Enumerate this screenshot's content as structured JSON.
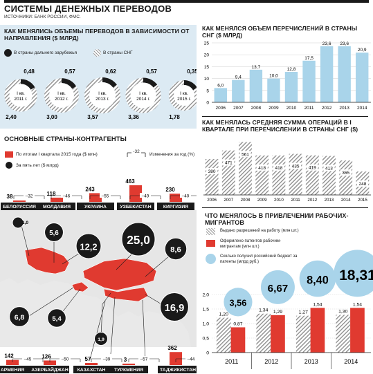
{
  "header": {
    "title": "СИСТЕМЫ ДЕНЕЖНЫХ ПЕРЕВОДОВ",
    "source": "ИСТОЧНИКИ: БАНК РОССИИ, ФМС."
  },
  "colors": {
    "red": "#e03a30",
    "blue": "#a9d4ea",
    "hatch": "#bdbdbd",
    "dark": "#1a1a1a",
    "panel": "#dceaf3"
  },
  "chart_data": [
    {
      "type": "pie",
      "title": "КАК МЕНЯЛИСЬ ОБЪЕМЫ ПЕРЕВОДОВ В ЗАВИСИМОСТИ ОТ НАПРАВЛЕНИЯ ($ МЛРД)",
      "legend": [
        "В страны дальнего зарубежья",
        "В страны СНГ"
      ],
      "series": [
        {
          "label": "I кв. 2011 г.",
          "far": 0.48,
          "cis": 2.4
        },
        {
          "label": "I кв. 2012 г.",
          "far": 0.57,
          "cis": 3.0
        },
        {
          "label": "I кв. 2013 г.",
          "far": 0.62,
          "cis": 3.57
        },
        {
          "label": "I кв. 2014 г.",
          "far": 0.57,
          "cis": 3.36
        },
        {
          "label": "I кв. 2015 г.",
          "far": 0.35,
          "cis": 1.78
        }
      ]
    },
    {
      "type": "bar",
      "title": "КАК МЕНЯЛСЯ ОБЪЕМ ПЕРЕЧИСЛЕНИЙ В СТРАНЫ СНГ ($ МЛРД)",
      "categories": [
        "2006",
        "2007",
        "2008",
        "2009",
        "2010",
        "2011",
        "2012",
        "2013",
        "2014"
      ],
      "values": [
        6.0,
        9.4,
        13.7,
        10.0,
        12.8,
        17.5,
        23.6,
        23.6,
        20.9
      ],
      "value_labels": [
        "6,0",
        "9,4",
        "13,7",
        "10,0",
        "12,8",
        "17,5",
        "23,6",
        "23,6",
        "20,9"
      ],
      "yticks": [
        "0",
        "5",
        "10",
        "15",
        "20",
        "25"
      ],
      "ylim": [
        0,
        25
      ]
    },
    {
      "type": "bar",
      "title": "КАК МЕНЯЛАСЬ СРЕДНЯЯ СУММА ОПЕРАЦИЙ В I КВАРТАЛЕ ПРИ ПЕРЕЧИСЛЕНИИ В СТРАНЫ СНГ ($)",
      "categories": [
        "2006",
        "2007",
        "2008",
        "2009",
        "2010",
        "2011",
        "2012",
        "2013",
        "2014",
        "2015"
      ],
      "values": [
        380,
        471,
        561,
        418,
        418,
        435,
        419,
        413,
        365,
        248
      ],
      "ylim": [
        0,
        600
      ]
    },
    {
      "type": "bar",
      "title": "ЧТО МЕНЯЛОСЬ В ПРИВЛЕЧЕНИИ РАБОЧИХ-МИГРАНТОВ",
      "legend": [
        "Выдано разрешений на работу (млн шт.)",
        "Оформлено патентов рабочим-мигрантам (млн шт.)",
        "Сколько получил российский бюджет за патенты (млрд руб.)"
      ],
      "categories": [
        "2011",
        "2012",
        "2013",
        "2014"
      ],
      "series": [
        {
          "name": "Выдано разрешений на работу (млн шт.)",
          "values": [
            1.2,
            1.34,
            1.27,
            1.3
          ]
        },
        {
          "name": "Оформлено патентов рабочим-мигрантам (млн шт.)",
          "values": [
            0.87,
            1.29,
            1.54,
            1.54
          ]
        },
        {
          "name": "Сколько получил российский бюджет за патенты (млрд руб.)",
          "values": [
            3.56,
            6.67,
            8.4,
            18.31
          ]
        }
      ],
      "value_labels": {
        "permits": [
          "1,20",
          "1,34",
          "1,27",
          "1,30"
        ],
        "patents": [
          "0,87",
          "1,29",
          "1,54",
          "1,54"
        ],
        "budget": [
          "3,56",
          "6,67",
          "8,40",
          "18,31"
        ]
      },
      "yticks": [
        "0",
        "0,5",
        "1,0",
        "1,5",
        "2,0"
      ],
      "ylim": [
        0,
        2
      ]
    },
    {
      "type": "bar",
      "title": "ОСНОВНЫЕ СТРАНЫ-КОНТРАГЕНТЫ",
      "legend": [
        "По итогам I квартала 2015 года ($ млн)",
        "Изменения за год (%)",
        "За пять лет ($ млрд)"
      ],
      "legend_change_sample": "-32",
      "top_countries": [
        {
          "name": "БЕЛОРУССИЯ",
          "value": 38,
          "change": "–32"
        },
        {
          "name": "МОЛДАВИЯ",
          "value": 118,
          "change": "–46"
        },
        {
          "name": "УКРАИНА",
          "value": 243,
          "change": "–55"
        },
        {
          "name": "УЗБЕКИСТАН",
          "value": 463,
          "change": "–49"
        },
        {
          "name": "КИРГИЗИЯ",
          "value": 230,
          "change": "–40"
        }
      ],
      "bottom_countries": [
        {
          "name": "АРМЕНИЯ",
          "value": 142,
          "change": "–45"
        },
        {
          "name": "АЗЕРБАЙДЖАН",
          "value": 126,
          "change": "–50"
        },
        {
          "name": "КАЗАХСТАН",
          "value": 57,
          "change": "–39"
        },
        {
          "name": "ТУРКМЕНИЯ",
          "value": 3,
          "change": "–57"
        },
        {
          "name": "ТАДЖИКИСТАН",
          "value": 362,
          "change": "–44"
        }
      ],
      "five_year": [
        {
          "label": "1,0",
          "value": 1.0
        },
        {
          "label": "5,6",
          "value": 5.6
        },
        {
          "label": "12,2",
          "value": 12.2
        },
        {
          "label": "25,0",
          "value": 25.0
        },
        {
          "label": "8,6",
          "value": 8.6
        },
        {
          "label": "6,8",
          "value": 6.8
        },
        {
          "label": "5,4",
          "value": 5.4
        },
        {
          "label": "1,9",
          "value": 1.9
        },
        {
          "label": "16,9",
          "value": 16.9
        }
      ]
    }
  ]
}
